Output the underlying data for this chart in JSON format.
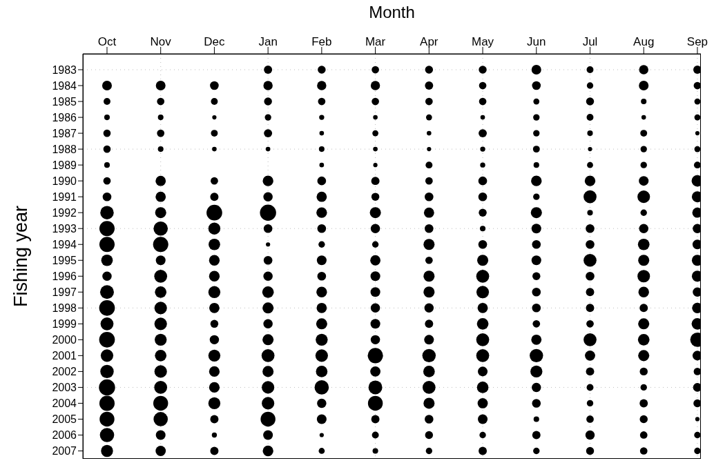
{
  "chart_data": {
    "type": "bubble",
    "xlabel": "Month",
    "ylabel": "Fishing year",
    "categories": [
      "Oct",
      "Nov",
      "Dec",
      "Jan",
      "Feb",
      "Mar",
      "Apr",
      "May",
      "Jun",
      "Jul",
      "Aug",
      "Sep"
    ],
    "ylim": [
      2007.5,
      1982
    ],
    "yticks": [
      1983,
      1984,
      1985,
      1986,
      1987,
      1988,
      1989,
      1990,
      1991,
      1992,
      1993,
      1994,
      1995,
      1996,
      1997,
      1998,
      1999,
      2000,
      2001,
      2002,
      2003,
      2004,
      2005,
      2006,
      2007
    ],
    "grid": true,
    "marker": "circle",
    "series": [
      {
        "color": "#000000",
        "values": [
          null,
          null,
          null,
          1983,
          1983,
          1983,
          1983,
          1983,
          1983,
          1983,
          1983,
          1983
        ],
        "sizes": [
          null,
          null,
          null,
          0.26,
          0.24,
          0.21,
          0.24,
          0.24,
          0.36,
          0.18,
          0.33,
          0.26
        ]
      },
      {
        "color": "#000000",
        "values": [
          1984,
          1984,
          1984,
          1984,
          1984,
          1984,
          1984,
          1984,
          1984,
          1984,
          1984,
          1984
        ],
        "sizes": [
          0.36,
          0.36,
          0.29,
          0.33,
          0.33,
          0.33,
          0.26,
          0.21,
          0.29,
          0.16,
          0.36,
          0.21
        ]
      },
      {
        "color": "#000000",
        "values": [
          1985,
          1985,
          1985,
          1985,
          1985,
          1985,
          1985,
          1985,
          1985,
          1985,
          1985,
          1985
        ],
        "sizes": [
          0.18,
          0.21,
          0.18,
          0.24,
          0.21,
          0.21,
          0.21,
          0.21,
          0.14,
          0.24,
          0.12,
          0.14
        ]
      },
      {
        "color": "#000000",
        "values": [
          1986,
          1986,
          1986,
          1986,
          1986,
          1986,
          1986,
          1986,
          1986,
          1986,
          1986,
          1986
        ],
        "sizes": [
          0.12,
          0.12,
          0.07,
          0.16,
          0.1,
          0.08,
          0.14,
          0.08,
          0.16,
          0.18,
          0.08,
          0.14
        ]
      },
      {
        "color": "#000000",
        "values": [
          1987,
          1987,
          1987,
          1987,
          1987,
          1987,
          1987,
          1987,
          1987,
          1987,
          1987,
          1987
        ],
        "sizes": [
          0.21,
          0.21,
          0.18,
          0.26,
          0.08,
          0.14,
          0.08,
          0.26,
          0.16,
          0.12,
          0.18,
          0.07
        ]
      },
      {
        "color": "#000000",
        "values": [
          1988,
          1988,
          1988,
          1988,
          1988,
          1988,
          1988,
          1988,
          1988,
          1988,
          1988,
          1988
        ],
        "sizes": [
          0.21,
          0.12,
          0.08,
          0.08,
          0.12,
          0.08,
          0.07,
          0.1,
          0.18,
          0.07,
          0.16,
          0.14
        ]
      },
      {
        "color": "#000000",
        "values": [
          1989,
          null,
          null,
          null,
          1989,
          1989,
          1989,
          1989,
          1989,
          1989,
          1989,
          1989
        ],
        "sizes": [
          0.12,
          null,
          null,
          null,
          0.08,
          0.07,
          0.18,
          0.1,
          0.12,
          0.14,
          0.16,
          0.18
        ]
      },
      {
        "color": "#000000",
        "values": [
          1990,
          1990,
          1990,
          1990,
          1990,
          1990,
          1990,
          1990,
          1990,
          1990,
          1990,
          1990
        ],
        "sizes": [
          0.21,
          0.4,
          0.21,
          0.43,
          0.29,
          0.26,
          0.21,
          0.29,
          0.43,
          0.43,
          0.36,
          0.51
        ]
      },
      {
        "color": "#000000",
        "values": [
          1991,
          1991,
          1991,
          1991,
          1991,
          1991,
          1991,
          1991,
          1991,
          1991,
          1991,
          1991
        ],
        "sizes": [
          0.29,
          0.4,
          0.26,
          0.33,
          0.4,
          0.24,
          0.29,
          0.29,
          0.16,
          0.64,
          0.6,
          0.47
        ]
      },
      {
        "color": "#000000",
        "values": [
          1992,
          1992,
          1992,
          1992,
          1992,
          1992,
          1992,
          1992,
          1992,
          1992,
          1992,
          1992
        ],
        "sizes": [
          0.69,
          0.47,
          0.94,
          1,
          0.43,
          0.47,
          0.4,
          0.24,
          0.47,
          0.12,
          0.16,
          0.4
        ]
      },
      {
        "color": "#000000",
        "values": [
          1993,
          1993,
          1993,
          1993,
          1993,
          1993,
          1993,
          1993,
          1993,
          1993,
          1993,
          1993
        ],
        "sizes": [
          0.89,
          0.78,
          0.55,
          0.29,
          0.29,
          0.33,
          0.29,
          0.12,
          0.36,
          0.29,
          0.33,
          0.33
        ]
      },
      {
        "color": "#000000",
        "values": [
          1994,
          1994,
          1994,
          1994,
          1994,
          1994,
          1994,
          1994,
          1994,
          1994,
          1994,
          1994
        ],
        "sizes": [
          0.89,
          0.89,
          0.51,
          0.07,
          0.16,
          0.16,
          0.47,
          0.29,
          0.29,
          0.29,
          0.51,
          0.36
        ]
      },
      {
        "color": "#000000",
        "values": [
          1995,
          1995,
          1995,
          1995,
          1995,
          1995,
          1995,
          1995,
          1995,
          1995,
          1995,
          1995
        ],
        "sizes": [
          0.51,
          0.36,
          0.43,
          0.29,
          0.36,
          0.4,
          0.21,
          0.47,
          0.36,
          0.64,
          0.47,
          0.47
        ]
      },
      {
        "color": "#000000",
        "values": [
          1996,
          1996,
          1996,
          1996,
          1996,
          1996,
          1996,
          1996,
          1996,
          1996,
          1996,
          1996
        ],
        "sizes": [
          0.33,
          0.64,
          0.43,
          0.33,
          0.29,
          0.36,
          0.47,
          0.64,
          0.24,
          0.29,
          0.6,
          0.47
        ]
      },
      {
        "color": "#000000",
        "values": [
          1997,
          1997,
          1997,
          1997,
          1997,
          1997,
          1997,
          1997,
          1997,
          1997,
          1997,
          1997
        ],
        "sizes": [
          0.73,
          0.51,
          0.55,
          0.51,
          0.43,
          0.36,
          0.47,
          0.6,
          0.29,
          0.26,
          0.43,
          0.33
        ]
      },
      {
        "color": "#000000",
        "values": [
          1998,
          1998,
          1998,
          1998,
          1998,
          1998,
          1998,
          1998,
          1998,
          1998,
          1998,
          1998
        ],
        "sizes": [
          0.94,
          0.6,
          0.4,
          0.47,
          0.4,
          0.33,
          0.33,
          0.4,
          0.29,
          0.26,
          0.26,
          0.43
        ]
      },
      {
        "color": "#000000",
        "values": [
          1999,
          1999,
          1999,
          1999,
          1999,
          1999,
          1999,
          1999,
          1999,
          1999,
          1999,
          1999
        ],
        "sizes": [
          0.64,
          0.6,
          0.24,
          0.33,
          0.47,
          0.36,
          0.26,
          0.51,
          0.21,
          0.21,
          0.47,
          0.51
        ]
      },
      {
        "color": "#000000",
        "values": [
          2000,
          2000,
          2000,
          2000,
          2000,
          2000,
          2000,
          2000,
          2000,
          2000,
          2000,
          2000
        ],
        "sizes": [
          0.94,
          0.55,
          0.33,
          0.47,
          0.55,
          0.33,
          0.36,
          0.64,
          0.4,
          0.64,
          0.51,
          0.78
        ]
      },
      {
        "color": "#000000",
        "values": [
          2001,
          2001,
          2001,
          2001,
          2001,
          2001,
          2001,
          2001,
          2001,
          2001,
          2001,
          2001
        ],
        "sizes": [
          0.6,
          0.51,
          0.55,
          0.64,
          0.6,
          0.89,
          0.69,
          0.64,
          0.69,
          0.4,
          0.47,
          0.36
        ]
      },
      {
        "color": "#000000",
        "values": [
          2002,
          2002,
          2002,
          2002,
          2002,
          2002,
          2002,
          2002,
          2002,
          2002,
          2002,
          2002
        ],
        "sizes": [
          0.69,
          0.6,
          0.43,
          0.47,
          0.51,
          0.4,
          0.51,
          0.36,
          0.55,
          0.26,
          0.24,
          0.21
        ]
      },
      {
        "color": "#000000",
        "values": [
          2003,
          2003,
          2003,
          2003,
          2003,
          2003,
          2003,
          2003,
          2003,
          2003,
          2003,
          2003
        ],
        "sizes": [
          1,
          0.64,
          0.43,
          0.6,
          0.78,
          0.73,
          0.64,
          0.51,
          0.33,
          0.18,
          0.16,
          0.29
        ]
      },
      {
        "color": "#000000",
        "values": [
          2004,
          2004,
          2004,
          2004,
          2004,
          2004,
          2004,
          2004,
          2004,
          2004,
          2004,
          2004
        ],
        "sizes": [
          0.89,
          0.84,
          0.55,
          0.6,
          0.33,
          0.84,
          0.47,
          0.4,
          0.29,
          0.16,
          0.26,
          0.24
        ]
      },
      {
        "color": "#000000",
        "values": [
          2005,
          2005,
          2005,
          2005,
          2005,
          2005,
          2005,
          2005,
          2005,
          2005,
          2005,
          2005
        ],
        "sizes": [
          0.84,
          0.78,
          0.26,
          0.84,
          0.36,
          0.26,
          0.29,
          0.36,
          0.12,
          0.21,
          0.24,
          0.07
        ]
      },
      {
        "color": "#000000",
        "values": [
          2006,
          2006,
          2006,
          2006,
          2006,
          2006,
          2006,
          2006,
          2006,
          2006,
          2006,
          2006
        ],
        "sizes": [
          0.78,
          0.36,
          0.1,
          0.36,
          0.07,
          0.18,
          0.24,
          0.16,
          0.26,
          0.33,
          0.21,
          0.16
        ]
      },
      {
        "color": "#000000",
        "values": [
          2007,
          2007,
          2007,
          2007,
          2007,
          2007,
          2007,
          2007,
          2007,
          2007,
          2007,
          2007
        ],
        "sizes": [
          0.55,
          0.4,
          0.26,
          0.43,
          0.14,
          0.12,
          0.16,
          0.26,
          0.16,
          0.24,
          0.21,
          0.16
        ]
      }
    ]
  }
}
